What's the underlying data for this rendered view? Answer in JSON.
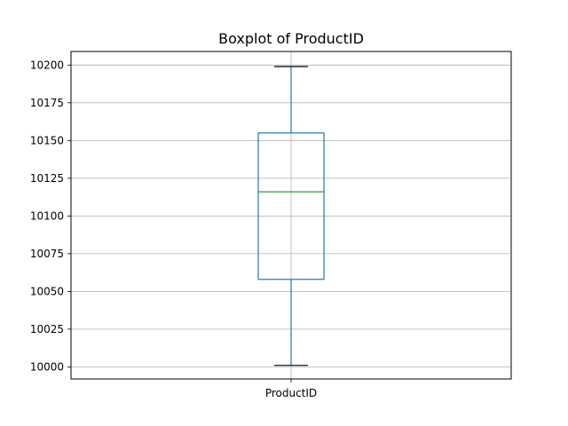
{
  "chart_data": {
    "type": "boxplot",
    "title": "Boxplot of ProductID",
    "xlabel": "",
    "ylabel": "",
    "categories": [
      "ProductID"
    ],
    "ylim": [
      9992,
      10209
    ],
    "yticks": [
      10000,
      10025,
      10050,
      10075,
      10100,
      10125,
      10150,
      10175,
      10200
    ],
    "grid": true,
    "series": [
      {
        "whisker_low": 10001,
        "q1": 10058,
        "median": 10116,
        "q3": 10155,
        "whisker_high": 10199
      }
    ],
    "colors": {
      "box": "#1f77b4",
      "median": "#2ca02c",
      "cap": "#000000",
      "grid": "#b0b0b0",
      "axes": "#000000"
    }
  }
}
